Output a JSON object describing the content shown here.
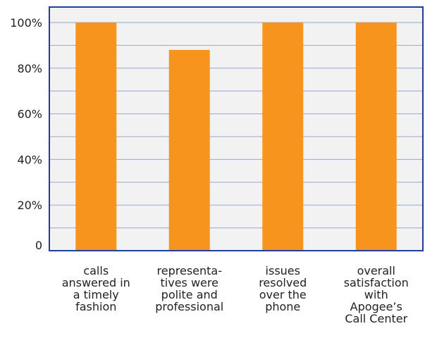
{
  "colors": {
    "plot_background": "#f2f2f2",
    "axis_frame": "#1f3f99",
    "gridline": "#9aa6c9",
    "bar_fill": "#f7941d",
    "text": "#222222"
  },
  "chart_data": {
    "type": "bar",
    "title": "",
    "xlabel": "",
    "ylabel": "",
    "ylim": [
      0,
      100
    ],
    "grid": true,
    "y_ticks": [
      0,
      20,
      40,
      60,
      80,
      100
    ],
    "y_tick_labels": [
      "0",
      "20%",
      "40%",
      "60%",
      "80%",
      "100%"
    ],
    "categories": [
      [
        "calls",
        "answered in",
        "a timely",
        "fashion"
      ],
      [
        "representa-",
        "tives were",
        "polite and",
        "professional"
      ],
      [
        "issues",
        "resolved",
        "over the",
        "phone"
      ],
      [
        "overall",
        "satisfaction",
        "with",
        "Apogee’s",
        "Call Center"
      ]
    ],
    "values": [
      100,
      88,
      100,
      100
    ]
  }
}
